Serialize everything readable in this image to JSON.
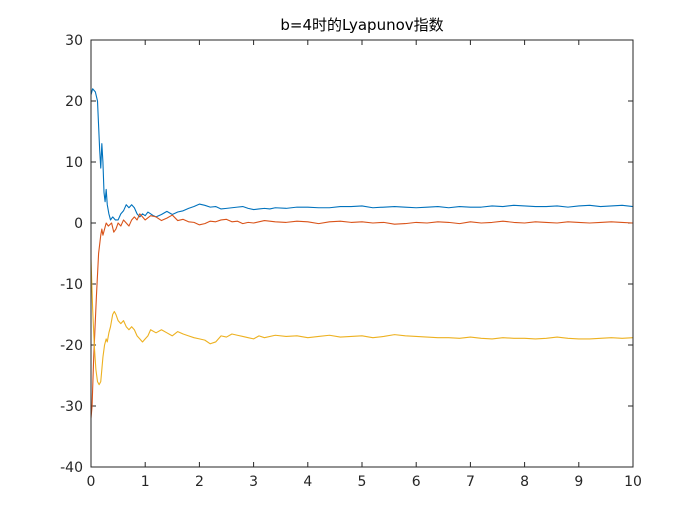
{
  "chart_data": {
    "type": "line",
    "title": "b=4时的Lyapunov指数",
    "xlabel": "",
    "ylabel": "",
    "xlim": [
      0,
      10
    ],
    "ylim": [
      -40,
      30
    ],
    "xticks": [
      0,
      1,
      2,
      3,
      4,
      5,
      6,
      7,
      8,
      9,
      10
    ],
    "yticks": [
      -40,
      -30,
      -20,
      -10,
      0,
      10,
      20,
      30
    ],
    "grid": false,
    "box": true,
    "series": [
      {
        "color": "#0072BD",
        "x": [
          0,
          0.03,
          0.08,
          0.12,
          0.16,
          0.18,
          0.2,
          0.22,
          0.24,
          0.26,
          0.28,
          0.3,
          0.33,
          0.36,
          0.4,
          0.45,
          0.5,
          0.55,
          0.6,
          0.65,
          0.7,
          0.75,
          0.8,
          0.85,
          0.9,
          0.95,
          1.0,
          1.05,
          1.1,
          1.15,
          1.2,
          1.3,
          1.4,
          1.5,
          1.6,
          1.7,
          1.8,
          1.9,
          2.0,
          2.1,
          2.2,
          2.3,
          2.4,
          2.5,
          2.6,
          2.7,
          2.8,
          2.9,
          3.0,
          3.1,
          3.2,
          3.3,
          3.4,
          3.6,
          3.8,
          4.0,
          4.2,
          4.4,
          4.6,
          4.8,
          5.0,
          5.2,
          5.4,
          5.6,
          5.8,
          6.0,
          6.2,
          6.4,
          6.6,
          6.8,
          7.0,
          7.2,
          7.4,
          7.6,
          7.8,
          8.0,
          8.2,
          8.4,
          8.6,
          8.8,
          9.0,
          9.2,
          9.4,
          9.6,
          9.8,
          10.0
        ],
        "y": [
          21,
          22,
          21.5,
          20,
          12,
          9,
          13,
          10,
          5,
          3.5,
          5.5,
          3,
          1.5,
          0.5,
          1,
          0.5,
          0.5,
          1.5,
          2,
          3,
          2.5,
          3,
          2.5,
          1.5,
          1,
          1.5,
          1.2,
          1.8,
          1.5,
          1.2,
          1.0,
          1.4,
          1.9,
          1.4,
          1.8,
          2.0,
          2.4,
          2.7,
          3.1,
          2.9,
          2.6,
          2.7,
          2.3,
          2.4,
          2.5,
          2.6,
          2.7,
          2.4,
          2.2,
          2.3,
          2.4,
          2.3,
          2.5,
          2.4,
          2.6,
          2.6,
          2.5,
          2.5,
          2.7,
          2.7,
          2.8,
          2.5,
          2.6,
          2.7,
          2.6,
          2.5,
          2.6,
          2.7,
          2.5,
          2.7,
          2.6,
          2.6,
          2.8,
          2.7,
          2.9,
          2.8,
          2.7,
          2.7,
          2.8,
          2.6,
          2.8,
          2.9,
          2.7,
          2.8,
          2.9,
          2.7
        ]
      },
      {
        "color": "#D95319",
        "x": [
          0,
          0.02,
          0.05,
          0.1,
          0.14,
          0.18,
          0.2,
          0.22,
          0.25,
          0.28,
          0.32,
          0.38,
          0.42,
          0.46,
          0.5,
          0.55,
          0.6,
          0.65,
          0.7,
          0.75,
          0.8,
          0.85,
          0.9,
          0.95,
          1.0,
          1.1,
          1.2,
          1.3,
          1.4,
          1.5,
          1.6,
          1.7,
          1.8,
          1.9,
          2.0,
          2.1,
          2.2,
          2.3,
          2.4,
          2.5,
          2.6,
          2.7,
          2.8,
          2.9,
          3.0,
          3.2,
          3.4,
          3.6,
          3.8,
          4.0,
          4.2,
          4.4,
          4.6,
          4.8,
          5.0,
          5.2,
          5.4,
          5.6,
          5.8,
          6.0,
          6.2,
          6.4,
          6.6,
          6.8,
          7.0,
          7.2,
          7.4,
          7.6,
          7.8,
          8.0,
          8.2,
          8.4,
          8.6,
          8.8,
          9.0,
          9.2,
          9.4,
          9.6,
          9.8,
          10.0
        ],
        "y": [
          -32,
          -30,
          -22,
          -12,
          -5,
          -2,
          -1,
          -2,
          -1,
          0,
          -0.5,
          0,
          -1.5,
          -1,
          0,
          -0.5,
          0.5,
          0,
          -0.5,
          0.5,
          1,
          0.5,
          1.5,
          1,
          0.5,
          1.2,
          1,
          0.4,
          0.8,
          1.3,
          0.4,
          0.6,
          0.2,
          0.1,
          -0.3,
          -0.1,
          0.3,
          0.2,
          0.5,
          0.6,
          0.2,
          0.3,
          -0.1,
          0.1,
          0.0,
          0.4,
          0.2,
          0.1,
          0.3,
          0.2,
          -0.1,
          0.2,
          0.3,
          0.1,
          0.2,
          0.0,
          0.1,
          -0.2,
          -0.1,
          0.1,
          0.0,
          0.2,
          0.1,
          -0.1,
          0.2,
          0.0,
          0.1,
          0.3,
          0.1,
          0.0,
          0.2,
          0.1,
          0.0,
          0.2,
          0.1,
          0.0,
          0.1,
          0.2,
          0.1,
          0.0
        ]
      },
      {
        "color": "#EDB120",
        "x": [
          0,
          0.03,
          0.06,
          0.09,
          0.12,
          0.15,
          0.18,
          0.2,
          0.22,
          0.25,
          0.28,
          0.3,
          0.33,
          0.36,
          0.4,
          0.43,
          0.46,
          0.5,
          0.55,
          0.6,
          0.65,
          0.7,
          0.75,
          0.8,
          0.85,
          0.9,
          0.95,
          1.0,
          1.05,
          1.1,
          1.2,
          1.3,
          1.4,
          1.5,
          1.6,
          1.7,
          1.8,
          1.9,
          2.0,
          2.1,
          2.2,
          2.3,
          2.4,
          2.5,
          2.6,
          2.7,
          2.8,
          2.9,
          3.0,
          3.1,
          3.2,
          3.4,
          3.6,
          3.8,
          4.0,
          4.2,
          4.4,
          4.6,
          4.8,
          5.0,
          5.2,
          5.4,
          5.6,
          5.8,
          6.0,
          6.2,
          6.4,
          6.6,
          6.8,
          7.0,
          7.2,
          7.4,
          7.6,
          7.8,
          8.0,
          8.2,
          8.4,
          8.6,
          8.8,
          9.0,
          9.2,
          9.4,
          9.6,
          9.8,
          10.0
        ],
        "y": [
          -6,
          -14,
          -20,
          -24,
          -26,
          -26.5,
          -26,
          -24,
          -22,
          -20,
          -19,
          -19.5,
          -18,
          -17,
          -15,
          -14.5,
          -15,
          -16,
          -16.5,
          -16,
          -17,
          -17.5,
          -17,
          -17.5,
          -18.5,
          -19,
          -19.5,
          -19,
          -18.5,
          -17.5,
          -18,
          -17.5,
          -18,
          -18.5,
          -17.8,
          -18.2,
          -18.5,
          -18.8,
          -19,
          -19.2,
          -19.8,
          -19.5,
          -18.5,
          -18.7,
          -18.2,
          -18.4,
          -18.6,
          -18.8,
          -19.0,
          -18.5,
          -18.8,
          -18.4,
          -18.6,
          -18.5,
          -18.8,
          -18.6,
          -18.4,
          -18.7,
          -18.6,
          -18.5,
          -18.8,
          -18.6,
          -18.3,
          -18.5,
          -18.6,
          -18.7,
          -18.8,
          -18.8,
          -18.9,
          -18.7,
          -18.9,
          -19.0,
          -18.8,
          -18.9,
          -18.9,
          -19.0,
          -18.9,
          -18.7,
          -18.9,
          -19.0,
          -19.0,
          -18.9,
          -18.8,
          -18.9,
          -18.8
        ]
      }
    ]
  }
}
